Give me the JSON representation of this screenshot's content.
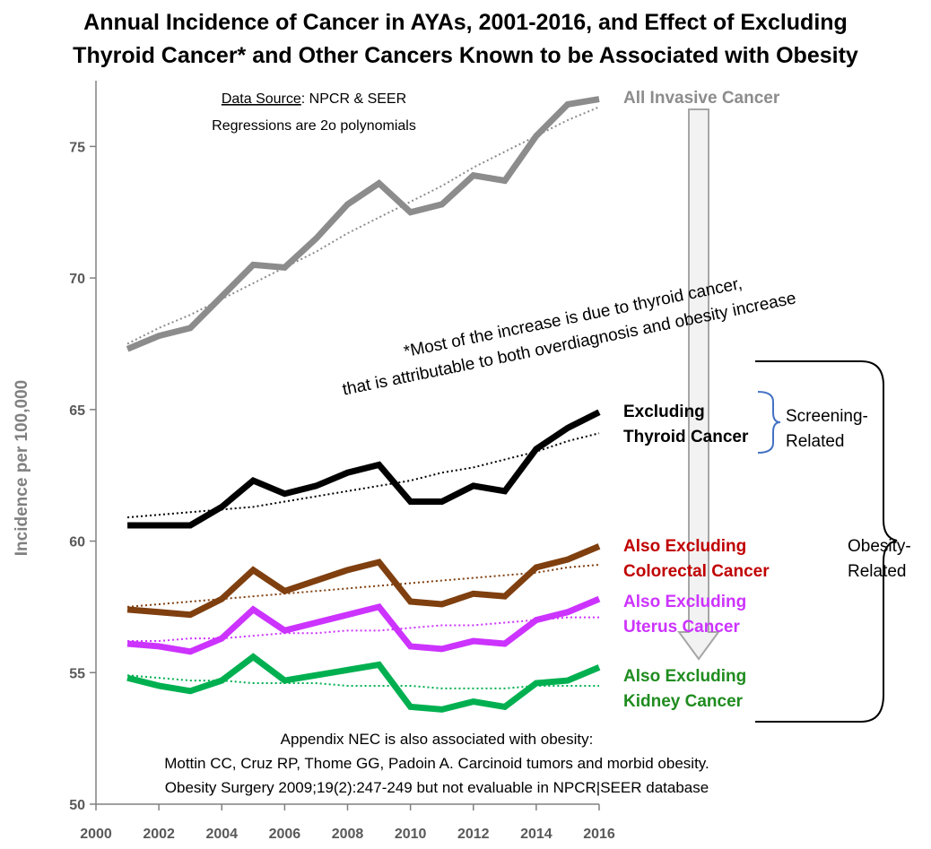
{
  "chart_data": {
    "type": "line",
    "title": "Annual Incidence of Cancer in AYAs, 2001-2016, and Effect of Excluding",
    "title_line2": "Thyroid Cancer* and Other Cancers Known to be Associated with Obesity",
    "ylabel": "Incidence per 100,000",
    "xlabel": "",
    "xlim": [
      2000,
      2016
    ],
    "ylim": [
      50,
      77.5
    ],
    "x_ticks": [
      "2000",
      "2002",
      "2004",
      "2006",
      "2008",
      "2010",
      "2012",
      "2014",
      "2016"
    ],
    "y_ticks": [
      "50",
      "55",
      "60",
      "65",
      "70",
      "75"
    ],
    "x": [
      2001,
      2002,
      2003,
      2004,
      2005,
      2006,
      2007,
      2008,
      2009,
      2010,
      2011,
      2012,
      2013,
      2014,
      2015,
      2016
    ],
    "grid": false,
    "series": [
      {
        "name": "All Invasive Cancer",
        "label_lines": [
          "All Invasive Cancer"
        ],
        "color": "#8c8c8c",
        "values": [
          67.3,
          67.8,
          68.1,
          69.3,
          70.5,
          70.4,
          71.5,
          72.8,
          73.6,
          72.5,
          72.8,
          73.9,
          73.7,
          75.4,
          76.6,
          76.8
        ],
        "trend": [
          67.5,
          68.1,
          68.6,
          69.2,
          69.8,
          70.4,
          71.0,
          71.7,
          72.3,
          72.9,
          73.5,
          74.2,
          74.8,
          75.4,
          76.0,
          76.5
        ]
      },
      {
        "name": "Excluding Thyroid Cancer",
        "label_lines": [
          "Excluding",
          "Thyroid Cancer"
        ],
        "color": "#000000",
        "values": [
          60.6,
          60.6,
          60.6,
          61.3,
          62.3,
          61.8,
          62.1,
          62.6,
          62.9,
          61.5,
          61.5,
          62.1,
          61.9,
          63.5,
          64.3,
          64.9
        ],
        "trend": [
          60.9,
          61.0,
          61.1,
          61.2,
          61.3,
          61.5,
          61.7,
          61.9,
          62.1,
          62.3,
          62.6,
          62.8,
          63.1,
          63.4,
          63.8,
          64.1
        ]
      },
      {
        "name": "Also Excluding Colorectal Cancer",
        "label_lines": [
          "Also Excluding",
          "Colorectal Cancer"
        ],
        "color": "#c00000",
        "line_color": "#7f3f0f",
        "values": [
          57.4,
          57.3,
          57.2,
          57.8,
          58.9,
          58.1,
          58.5,
          58.9,
          59.2,
          57.7,
          57.6,
          58.0,
          57.9,
          59.0,
          59.3,
          59.8
        ],
        "trend": [
          57.5,
          57.6,
          57.7,
          57.8,
          57.9,
          58.0,
          58.1,
          58.2,
          58.3,
          58.4,
          58.5,
          58.6,
          58.7,
          58.8,
          59.0,
          59.1
        ]
      },
      {
        "name": "Also Excluding Uterus Cancer",
        "label_lines": [
          "Also Excluding",
          "Uterus Cancer"
        ],
        "color": "#cc33ff",
        "values": [
          56.1,
          56.0,
          55.8,
          56.3,
          57.4,
          56.6,
          56.9,
          57.2,
          57.5,
          56.0,
          55.9,
          56.2,
          56.1,
          57.0,
          57.3,
          57.8
        ],
        "trend": [
          56.2,
          56.2,
          56.3,
          56.3,
          56.4,
          56.5,
          56.5,
          56.6,
          56.6,
          56.7,
          56.8,
          56.8,
          56.9,
          57.0,
          57.1,
          57.1
        ]
      },
      {
        "name": "Also Excluding Kidney Cancer",
        "label_lines": [
          "Also Excluding",
          "Kidney Cancer"
        ],
        "color": "#1f8c1f",
        "line_color": "#00b050",
        "values": [
          54.8,
          54.5,
          54.3,
          54.7,
          55.6,
          54.7,
          54.9,
          55.1,
          55.3,
          53.7,
          53.6,
          53.9,
          53.7,
          54.6,
          54.7,
          55.2
        ],
        "trend": [
          54.9,
          54.8,
          54.7,
          54.7,
          54.6,
          54.6,
          54.6,
          54.5,
          54.5,
          54.5,
          54.4,
          54.4,
          54.4,
          54.5,
          54.5,
          54.5
        ]
      }
    ]
  },
  "annotations": {
    "source_label": "Data Source",
    "source_text": ": NPCR & SEER",
    "regressions": "Regressions are 2o polynomials",
    "thyroid_note_line1": "*Most of the increase is due to thyroid cancer,",
    "thyroid_note_line2": "that is attributable to both overdiagnosis and obesity increase",
    "screening_line1": "Screening-",
    "screening_line2": "Related",
    "obesity_line1": "Obesity-",
    "obesity_line2": "Related",
    "appendix_line1": "Appendix NEC is also associated with obesity:",
    "appendix_line2": "Mottin CC, Cruz RP, Thome GG, Padoin A. Carcinoid tumors and morbid obesity.",
    "appendix_line3": "Obesity Surgery 2009;19(2):247-249 but not evaluable in NPCR|SEER database"
  },
  "colors": {
    "axis": "#808080",
    "tick_text": "#595959",
    "screening_bracket": "#4472c4",
    "obesity_bracket": "#000000",
    "arrow_fill": "#f2f2f2",
    "arrow_stroke": "#a6a6a6"
  }
}
